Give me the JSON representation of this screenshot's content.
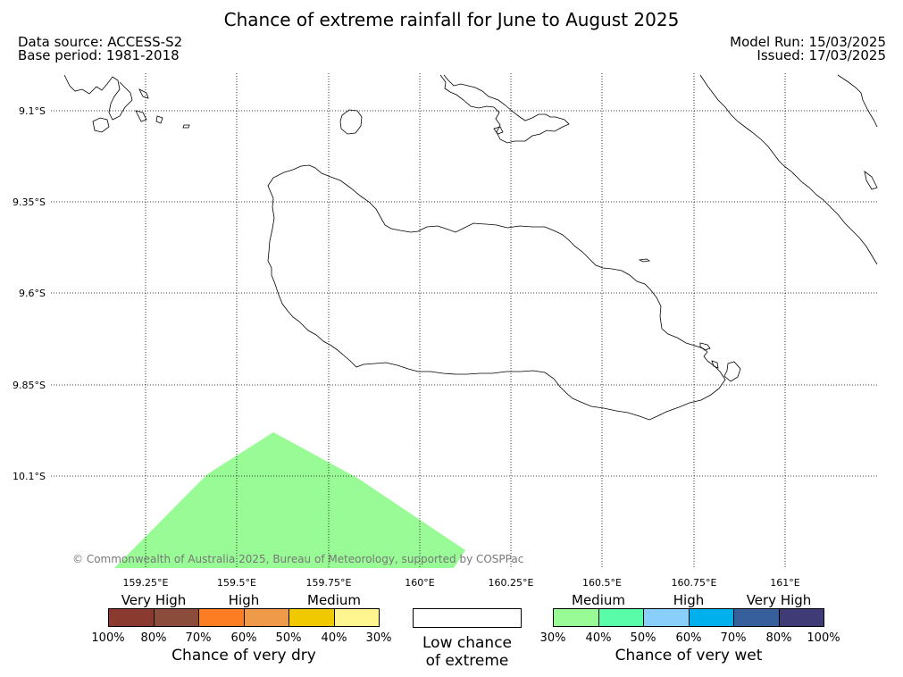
{
  "title": "Chance of extreme rainfall for June to August 2025",
  "meta": {
    "data_source": "Data source: ACCESS-S2",
    "base_period": "Base period: 1981-2018",
    "model_run": "Model Run: 15/03/2025",
    "issued": "Issued: 17/03/2025"
  },
  "map": {
    "lat_labels": [
      "9.1°S",
      "9.35°S",
      "9.6°S",
      "9.85°S",
      "10.1°S"
    ],
    "lon_labels": [
      "159.25°E",
      "159.5°E",
      "159.75°E",
      "160°E",
      "160.25°E",
      "160.5°E",
      "160.75°E",
      "161°E"
    ],
    "copyright": "© Commonwealth of Australia 2025, Bureau of Meteorology, supported by COSPPac",
    "shaded_region_category": "Medium",
    "shaded_region_color": "#99fb96",
    "gridline_style": "dotted",
    "coastline_color": "#000000"
  },
  "legend": {
    "dry": {
      "categories": [
        "Very High",
        "High",
        "Medium"
      ],
      "colors": [
        "#8b3a2f",
        "#8b4c3c",
        "#fd7e22",
        "#ef9a48",
        "#f1c900",
        "#fff68f"
      ],
      "ticks": [
        "100%",
        "80%",
        "70%",
        "60%",
        "50%",
        "40%",
        "30%"
      ],
      "title": "Chance of very dry"
    },
    "low": {
      "line1": "Low chance",
      "line2": "of extreme",
      "color": "#ffffff"
    },
    "wet": {
      "categories": [
        "Medium",
        "High",
        "Very High"
      ],
      "colors": [
        "#99fb96",
        "#58fca9",
        "#88cffc",
        "#00b0ed",
        "#365f9c",
        "#3f3b77"
      ],
      "ticks": [
        "30%",
        "40%",
        "50%",
        "60%",
        "70%",
        "80%",
        "100%"
      ],
      "title": "Chance of very wet"
    }
  }
}
